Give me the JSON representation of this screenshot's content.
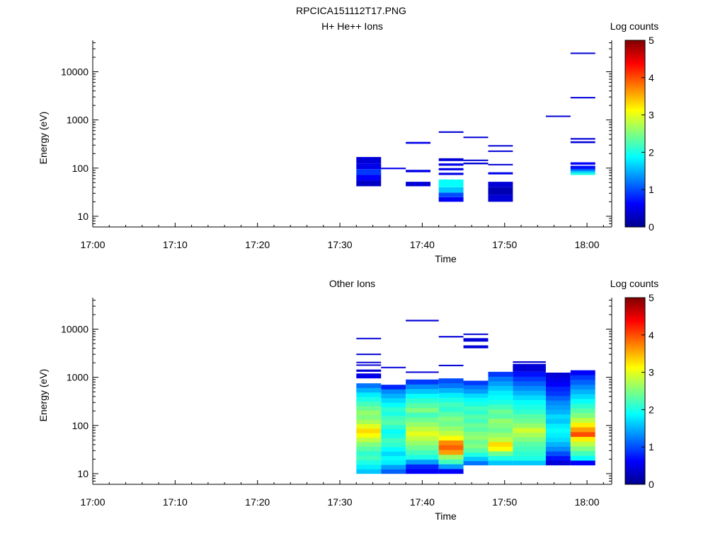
{
  "figure_title": "RPCICA151112T17.PNG",
  "colors": {
    "jet": [
      "#00008f",
      "#0000ff",
      "#00ffff",
      "#ffff00",
      "#ff0000",
      "#800000"
    ]
  },
  "chart_data": [
    {
      "type": "heatmap",
      "title": "H+ He++ Ions",
      "xlabel": "Time",
      "ylabel": "Energy (eV)",
      "x_ticks": [
        "17:00",
        "17:10",
        "17:20",
        "17:30",
        "17:40",
        "17:50",
        "18:00"
      ],
      "x_range": [
        "17:00",
        "18:03"
      ],
      "y_scale": "log",
      "y_ticks": [
        10,
        100,
        1000,
        10000
      ],
      "y_range": [
        6,
        45000
      ],
      "colorbar": {
        "label": "Log counts",
        "range": [
          0,
          5
        ],
        "ticks": [
          0,
          1,
          2,
          3,
          4,
          5
        ]
      },
      "cells": [
        {
          "t0": "17:32",
          "t1": "17:35",
          "e0": 42,
          "e1": 55,
          "v": 0.3
        },
        {
          "t0": "17:32",
          "t1": "17:35",
          "e0": 55,
          "e1": 72,
          "v": 0.6
        },
        {
          "t0": "17:32",
          "t1": "17:35",
          "e0": 72,
          "e1": 95,
          "v": 0.9
        },
        {
          "t0": "17:32",
          "t1": "17:35",
          "e0": 95,
          "e1": 125,
          "v": 0.5
        },
        {
          "t0": "17:32",
          "t1": "17:35",
          "e0": 125,
          "e1": 170,
          "v": 0.4
        },
        {
          "t0": "17:35",
          "t1": "17:38",
          "e0": 95,
          "e1": 102,
          "v": 0.5
        },
        {
          "t0": "17:38",
          "t1": "17:41",
          "e0": 42,
          "e1": 52,
          "v": 0.4
        },
        {
          "t0": "17:38",
          "t1": "17:41",
          "e0": 82,
          "e1": 92,
          "v": 0.5
        },
        {
          "t0": "17:38",
          "t1": "17:41",
          "e0": 320,
          "e1": 350,
          "v": 0.5
        },
        {
          "t0": "17:42",
          "t1": "17:45",
          "e0": 20,
          "e1": 25,
          "v": 0.6
        },
        {
          "t0": "17:42",
          "t1": "17:45",
          "e0": 25,
          "e1": 31,
          "v": 1.0
        },
        {
          "t0": "17:42",
          "t1": "17:45",
          "e0": 31,
          "e1": 40,
          "v": 1.6
        },
        {
          "t0": "17:42",
          "t1": "17:45",
          "e0": 40,
          "e1": 58,
          "v": 1.9
        },
        {
          "t0": "17:42",
          "t1": "17:45",
          "e0": 72,
          "e1": 80,
          "v": 0.5
        },
        {
          "t0": "17:42",
          "t1": "17:45",
          "e0": 90,
          "e1": 100,
          "v": 0.5
        },
        {
          "t0": "17:42",
          "t1": "17:45",
          "e0": 112,
          "e1": 125,
          "v": 0.5
        },
        {
          "t0": "17:42",
          "t1": "17:45",
          "e0": 140,
          "e1": 160,
          "v": 0.4
        },
        {
          "t0": "17:42",
          "t1": "17:45",
          "e0": 540,
          "e1": 580,
          "v": 0.4
        },
        {
          "t0": "17:45",
          "t1": "17:48",
          "e0": 120,
          "e1": 130,
          "v": 0.4
        },
        {
          "t0": "17:45",
          "t1": "17:48",
          "e0": 140,
          "e1": 150,
          "v": 0.4
        },
        {
          "t0": "17:45",
          "t1": "17:48",
          "e0": 420,
          "e1": 450,
          "v": 0.4
        },
        {
          "t0": "17:48",
          "t1": "17:51",
          "e0": 20,
          "e1": 28,
          "v": 0.4
        },
        {
          "t0": "17:48",
          "t1": "17:51",
          "e0": 28,
          "e1": 40,
          "v": 0.2
        },
        {
          "t0": "17:48",
          "t1": "17:51",
          "e0": 40,
          "e1": 52,
          "v": 0.4
        },
        {
          "t0": "17:48",
          "t1": "17:51",
          "e0": 74,
          "e1": 82,
          "v": 0.5
        },
        {
          "t0": "17:48",
          "t1": "17:51",
          "e0": 115,
          "e1": 122,
          "v": 0.4
        },
        {
          "t0": "17:48",
          "t1": "17:51",
          "e0": 220,
          "e1": 232,
          "v": 0.4
        },
        {
          "t0": "17:48",
          "t1": "17:51",
          "e0": 280,
          "e1": 300,
          "v": 0.4
        },
        {
          "t0": "17:55",
          "t1": "17:58",
          "e0": 1150,
          "e1": 1230,
          "v": 0.4
        },
        {
          "t0": "17:58",
          "t1": "18:01",
          "e0": 72,
          "e1": 80,
          "v": 2.0
        },
        {
          "t0": "17:58",
          "t1": "18:01",
          "e0": 80,
          "e1": 88,
          "v": 1.6
        },
        {
          "t0": "17:58",
          "t1": "18:01",
          "e0": 88,
          "e1": 96,
          "v": 1.1
        },
        {
          "t0": "17:58",
          "t1": "18:01",
          "e0": 96,
          "e1": 112,
          "v": 0.7
        },
        {
          "t0": "17:58",
          "t1": "18:01",
          "e0": 118,
          "e1": 132,
          "v": 0.6
        },
        {
          "t0": "17:58",
          "t1": "18:01",
          "e0": 330,
          "e1": 360,
          "v": 0.4
        },
        {
          "t0": "17:58",
          "t1": "18:01",
          "e0": 390,
          "e1": 420,
          "v": 0.4
        },
        {
          "t0": "17:58",
          "t1": "18:01",
          "e0": 2800,
          "e1": 3000,
          "v": 0.4
        },
        {
          "t0": "17:58",
          "t1": "18:01",
          "e0": 23500,
          "e1": 25000,
          "v": 0.4
        }
      ]
    },
    {
      "type": "heatmap",
      "title": "Other Ions",
      "xlabel": "Time",
      "ylabel": "Energy (eV)",
      "x_ticks": [
        "17:00",
        "17:10",
        "17:20",
        "17:30",
        "17:40",
        "17:50",
        "18:00"
      ],
      "x_range": [
        "17:00",
        "18:03"
      ],
      "y_scale": "log",
      "y_ticks": [
        10,
        100,
        1000,
        10000
      ],
      "y_range": [
        6,
        45000
      ],
      "colorbar": {
        "label": "Log counts",
        "range": [
          0,
          5
        ],
        "ticks": [
          0,
          1,
          2,
          3,
          4,
          5
        ]
      },
      "columns": [
        {
          "t0": "17:32",
          "t1": "17:35",
          "e0": 10,
          "e1": 750,
          "v": [
            1.6,
            1.8,
            2.0,
            2.2,
            2.1,
            2.3,
            2.5,
            2.8,
            3.1,
            3.3,
            3.0,
            2.7,
            2.5,
            2.6,
            2.4,
            2.2,
            2.0,
            1.8,
            1.5,
            1.2
          ]
        },
        {
          "t0": "17:35",
          "t1": "17:38",
          "e0": 10,
          "e1": 700,
          "v": [
            1.1,
            1.4,
            1.8,
            1.9,
            1.7,
            1.9,
            2.1,
            2.2,
            2.0,
            1.9,
            2.1,
            2.3,
            2.2,
            2.0,
            2.1,
            1.9,
            1.7,
            1.5,
            1.3,
            0.8
          ]
        },
        {
          "t0": "17:38",
          "t1": "17:42",
          "e0": 10,
          "e1": 900,
          "v": [
            0.6,
            0.8,
            1.4,
            2.0,
            2.2,
            2.4,
            2.6,
            2.8,
            3.0,
            2.8,
            2.6,
            2.4,
            2.2,
            2.5,
            2.3,
            2.1,
            1.9,
            1.6,
            1.3,
            0.9
          ]
        },
        {
          "t0": "17:42",
          "t1": "17:45",
          "e0": 10,
          "e1": 950,
          "v": [
            0.6,
            1.4,
            2.2,
            2.6,
            3.6,
            3.9,
            3.7,
            3.1,
            2.8,
            2.6,
            2.4,
            2.5,
            2.3,
            2.1,
            2.2,
            2.0,
            1.8,
            1.5,
            1.2,
            1.0
          ]
        },
        {
          "t0": "17:45",
          "t1": "17:48",
          "e0": 15,
          "e1": 850,
          "v": [
            1.2,
            1.6,
            2.0,
            2.3,
            2.5,
            2.4,
            2.6,
            2.5,
            2.3,
            2.4,
            2.2,
            2.3,
            2.1,
            2.2,
            2.0,
            1.9,
            1.7,
            1.4,
            1.2,
            0.9
          ]
        },
        {
          "t0": "17:48",
          "t1": "17:51",
          "e0": 15,
          "e1": 1300,
          "v": [
            1.6,
            2.0,
            2.4,
            3.1,
            3.3,
            2.8,
            2.6,
            2.4,
            2.5,
            2.6,
            2.3,
            2.4,
            2.2,
            2.0,
            1.9,
            1.8,
            1.6,
            1.4,
            1.2,
            0.9
          ]
        },
        {
          "t0": "17:51",
          "t1": "17:55",
          "e0": 15,
          "e1": 1300,
          "v": [
            1.6,
            2.0,
            2.1,
            2.2,
            2.3,
            2.5,
            2.7,
            2.9,
            2.6,
            2.4,
            2.3,
            2.1,
            2.0,
            1.9,
            1.7,
            1.5,
            1.3,
            1.1,
            0.9,
            0.7
          ]
        },
        {
          "t0": "17:55",
          "t1": "17:58",
          "e0": 15,
          "e1": 1250,
          "v": [
            0.4,
            0.7,
            1.0,
            1.3,
            1.5,
            1.7,
            1.8,
            1.9,
            1.8,
            1.6,
            1.7,
            1.5,
            1.4,
            1.3,
            1.1,
            0.9,
            0.8,
            0.6,
            0.5,
            0.4
          ]
        },
        {
          "t0": "17:58",
          "t1": "18:01",
          "e0": 15,
          "e1": 1400,
          "v": [
            0.6,
            1.9,
            2.2,
            2.5,
            2.8,
            3.2,
            4.0,
            3.6,
            3.2,
            2.8,
            2.5,
            2.3,
            2.1,
            1.9,
            1.7,
            1.5,
            1.3,
            1.1,
            0.9,
            0.6
          ]
        }
      ],
      "cells": [
        {
          "t0": "17:32",
          "t1": "17:35",
          "e0": 950,
          "e1": 1200,
          "v": 0.5
        },
        {
          "t0": "17:32",
          "t1": "17:35",
          "e0": 1300,
          "e1": 1450,
          "v": 0.4
        },
        {
          "t0": "17:32",
          "t1": "17:35",
          "e0": 1750,
          "e1": 1850,
          "v": 0.4
        },
        {
          "t0": "17:32",
          "t1": "17:35",
          "e0": 2000,
          "e1": 2100,
          "v": 0.4
        },
        {
          "t0": "17:32",
          "t1": "17:35",
          "e0": 2900,
          "e1": 3100,
          "v": 0.4
        },
        {
          "t0": "17:32",
          "t1": "17:35",
          "e0": 6200,
          "e1": 6600,
          "v": 0.4
        },
        {
          "t0": "17:35",
          "t1": "17:38",
          "e0": 1550,
          "e1": 1650,
          "v": 0.4
        },
        {
          "t0": "17:38",
          "t1": "17:42",
          "e0": 1250,
          "e1": 1320,
          "v": 0.4
        },
        {
          "t0": "17:38",
          "t1": "17:42",
          "e0": 14500,
          "e1": 15600,
          "v": 0.4
        },
        {
          "t0": "17:42",
          "t1": "17:45",
          "e0": 1700,
          "e1": 1820,
          "v": 0.4
        },
        {
          "t0": "17:42",
          "t1": "17:45",
          "e0": 6700,
          "e1": 7200,
          "v": 0.4
        },
        {
          "t0": "17:45",
          "t1": "17:48",
          "e0": 4000,
          "e1": 4600,
          "v": 0.4
        },
        {
          "t0": "17:45",
          "t1": "17:48",
          "e0": 5500,
          "e1": 6500,
          "v": 0.4
        },
        {
          "t0": "17:45",
          "t1": "17:48",
          "e0": 7600,
          "e1": 8100,
          "v": 0.4
        },
        {
          "t0": "17:51",
          "t1": "17:55",
          "e0": 1300,
          "e1": 1900,
          "v": 0.4
        },
        {
          "t0": "17:51",
          "t1": "17:55",
          "e0": 2000,
          "e1": 2150,
          "v": 0.4
        }
      ]
    }
  ]
}
